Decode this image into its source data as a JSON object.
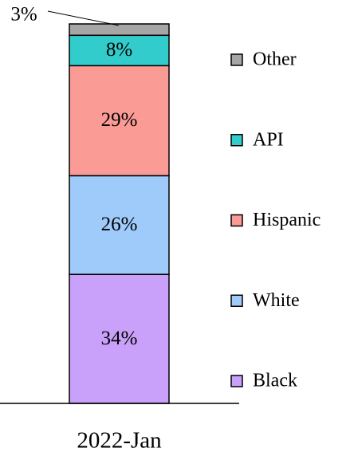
{
  "chart_data": {
    "type": "stacked_bar",
    "categories": [
      "2022-Jan"
    ],
    "series": [
      {
        "name": "Black",
        "color": "#c9a0fa",
        "values": [
          34
        ],
        "value_labels": [
          "34%"
        ]
      },
      {
        "name": "White",
        "color": "#9fcbfa",
        "values": [
          26
        ],
        "value_labels": [
          "26%"
        ]
      },
      {
        "name": "Hispanic",
        "color": "#fb9b96",
        "values": [
          29
        ],
        "value_labels": [
          "29%"
        ]
      },
      {
        "name": "API",
        "color": "#33cccc",
        "values": [
          8
        ],
        "value_labels": [
          "8%"
        ]
      },
      {
        "name": "Other",
        "color": "#a6a6a6",
        "values": [
          3
        ],
        "value_labels": [
          "3%"
        ]
      }
    ],
    "legend": "right"
  }
}
